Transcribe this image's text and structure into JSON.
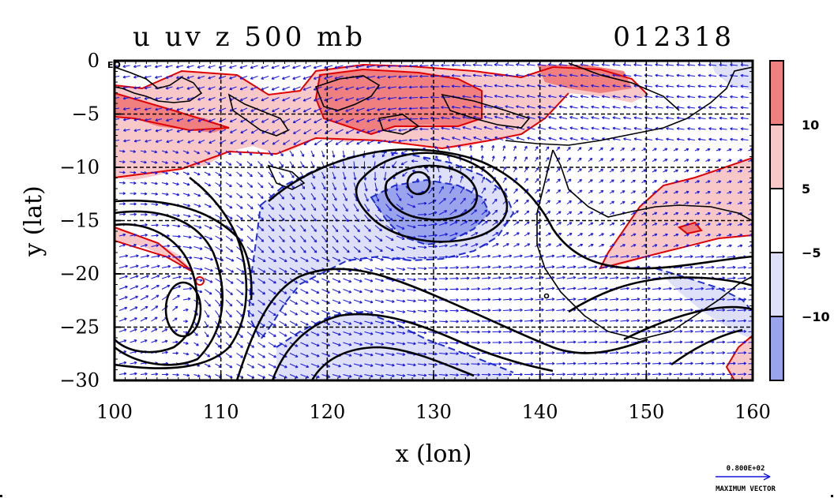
{
  "chart_data": {
    "type": "heatmap",
    "title": "u uv z 500 mb",
    "date_label": "012318",
    "xlabel": "x (lon)",
    "ylabel": "y (lat)",
    "xlim": [
      100,
      160
    ],
    "ylim": [
      -30,
      0
    ],
    "x_ticks": [
      100,
      110,
      120,
      130,
      140,
      150,
      160
    ],
    "x_tick_labels": [
      "100",
      "110",
      "120",
      "130",
      "140",
      "150",
      "160"
    ],
    "y_ticks": [
      0,
      -5,
      -10,
      -15,
      -20,
      -25,
      -30
    ],
    "y_tick_labels": [
      "0",
      "−5",
      "−10",
      "−15",
      "−20",
      "−25",
      "−30"
    ],
    "equator_label": "EQ",
    "grid": true,
    "colorbar": {
      "placement": "right",
      "bands": [
        {
          "from": 10,
          "to": 15,
          "color": "#f08080"
        },
        {
          "from": 5,
          "to": 10,
          "color": "#f8c8c8"
        },
        {
          "from": -5,
          "to": 5,
          "color": "#ffffff"
        },
        {
          "from": -10,
          "to": -5,
          "color": "#dde0f8"
        },
        {
          "from": -15,
          "to": -10,
          "color": "#9aa4ec"
        }
      ],
      "tick_labels": [
        "10",
        "5",
        "−5",
        "−10"
      ]
    },
    "vector_legend": {
      "value_label": "0.800E+02",
      "caption": "MAXIMUM VECTOR"
    },
    "colors": {
      "positive_contour": "#e00000",
      "negative_contour": "#2030d0",
      "height_contour": "#000000",
      "vectors": "#1515e0"
    }
  }
}
